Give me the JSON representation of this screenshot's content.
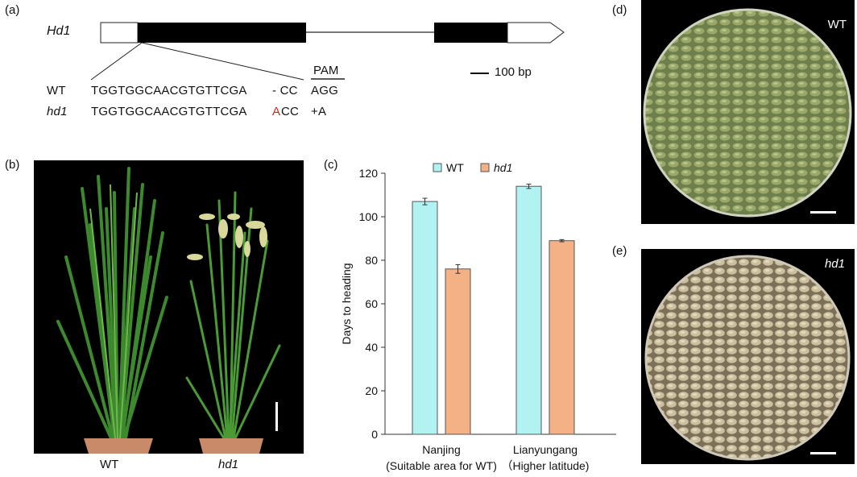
{
  "panels": {
    "a": {
      "label": "(a)",
      "gene": "Hd1",
      "pam_label": "PAM",
      "scale_label": "100 bp",
      "wt": {
        "name": "WT",
        "seq": "TGGTGGCAACGTGTTCGA",
        "gap": "- CC",
        "pam": "AGG"
      },
      "hd1": {
        "name": "hd1",
        "seq": "TGGTGGCAACGTGTTCGA",
        "ins": "A",
        "rest": "CC",
        "note": "+A"
      }
    },
    "b": {
      "label": "(b)",
      "wt": "WT",
      "mut": "hd1"
    },
    "c": {
      "label": "(c)"
    },
    "d": {
      "label": "(d)",
      "tag": "WT"
    },
    "e": {
      "label": "(e)",
      "tag": "hd1"
    }
  },
  "colors": {
    "wt_bar": "#b3f2f2",
    "hd1_bar": "#f4b186",
    "insert_red": "#e0201c"
  },
  "chart_data": {
    "type": "bar",
    "categories": [
      {
        "line1": "Nanjing",
        "line2": "(Suitable area for WT)"
      },
      {
        "line1": "Lianyungang",
        "line2": "（Higher latitude)"
      }
    ],
    "series": [
      {
        "name": "WT",
        "values": [
          107,
          114
        ],
        "errors": [
          1.5,
          1.0
        ]
      },
      {
        "name": "hd1",
        "values": [
          76,
          89
        ],
        "errors": [
          2.0,
          0.5
        ]
      }
    ],
    "ylabel": "Days to heading",
    "ylim": [
      0,
      120
    ],
    "yticks": [
      "0",
      "20",
      "40",
      "60",
      "80",
      "100",
      "120"
    ],
    "legend": "top"
  }
}
